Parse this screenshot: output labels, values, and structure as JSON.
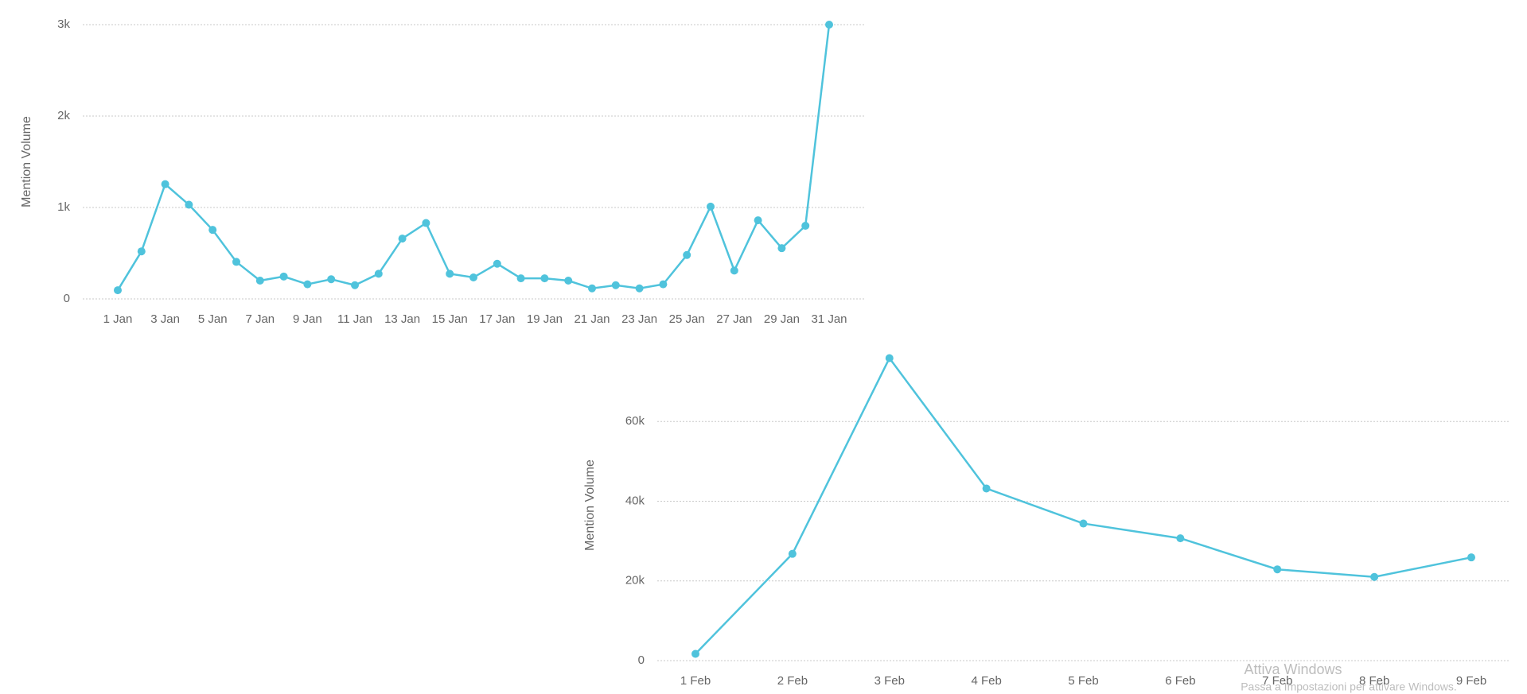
{
  "chart_data": [
    {
      "type": "line",
      "y_label": "Mention Volume",
      "color": "#4fc3dc",
      "grid": true,
      "categories": [
        "1 Jan",
        null,
        "3 Jan",
        null,
        "5 Jan",
        null,
        "7 Jan",
        null,
        "9 Jan",
        null,
        "11 Jan",
        null,
        "13 Jan",
        null,
        "15 Jan",
        null,
        "17 Jan",
        null,
        "19 Jan",
        null,
        "21 Jan",
        null,
        "23 Jan",
        null,
        "25 Jan",
        null,
        "27 Jan",
        null,
        "29 Jan",
        null,
        "31 Jan"
      ],
      "values": [
        95,
        520,
        1255,
        1030,
        755,
        405,
        200,
        245,
        160,
        215,
        150,
        275,
        660,
        830,
        275,
        235,
        385,
        225,
        225,
        200,
        115,
        150,
        115,
        160,
        480,
        1010,
        310,
        860,
        555,
        800,
        3000
      ],
      "ylim": [
        0,
        3000
      ],
      "yticks": [
        0,
        {
          "value": 1000,
          "label": "1k"
        },
        {
          "value": 2000,
          "label": "2k"
        },
        {
          "value": 3000,
          "label": "3k"
        }
      ]
    },
    {
      "type": "line",
      "y_label": "Mention Volume",
      "color": "#4fc3dc",
      "grid": true,
      "categories": [
        "1 Feb",
        "2 Feb",
        "3 Feb",
        "4 Feb",
        "5 Feb",
        "6 Feb",
        "7 Feb",
        "8 Feb",
        "9 Feb"
      ],
      "values": [
        1700,
        26800,
        75900,
        43200,
        34400,
        30700,
        22900,
        21000,
        25900
      ],
      "ylim": [
        0,
        78000
      ],
      "yticks": [
        0,
        {
          "value": 20000,
          "label": "20k"
        },
        {
          "value": 40000,
          "label": "40k"
        },
        {
          "value": 60000,
          "label": "60k"
        }
      ]
    }
  ],
  "watermark": {
    "title": "Attiva Windows",
    "subtitle": "Passa a Impostazioni per attivare Windows."
  }
}
